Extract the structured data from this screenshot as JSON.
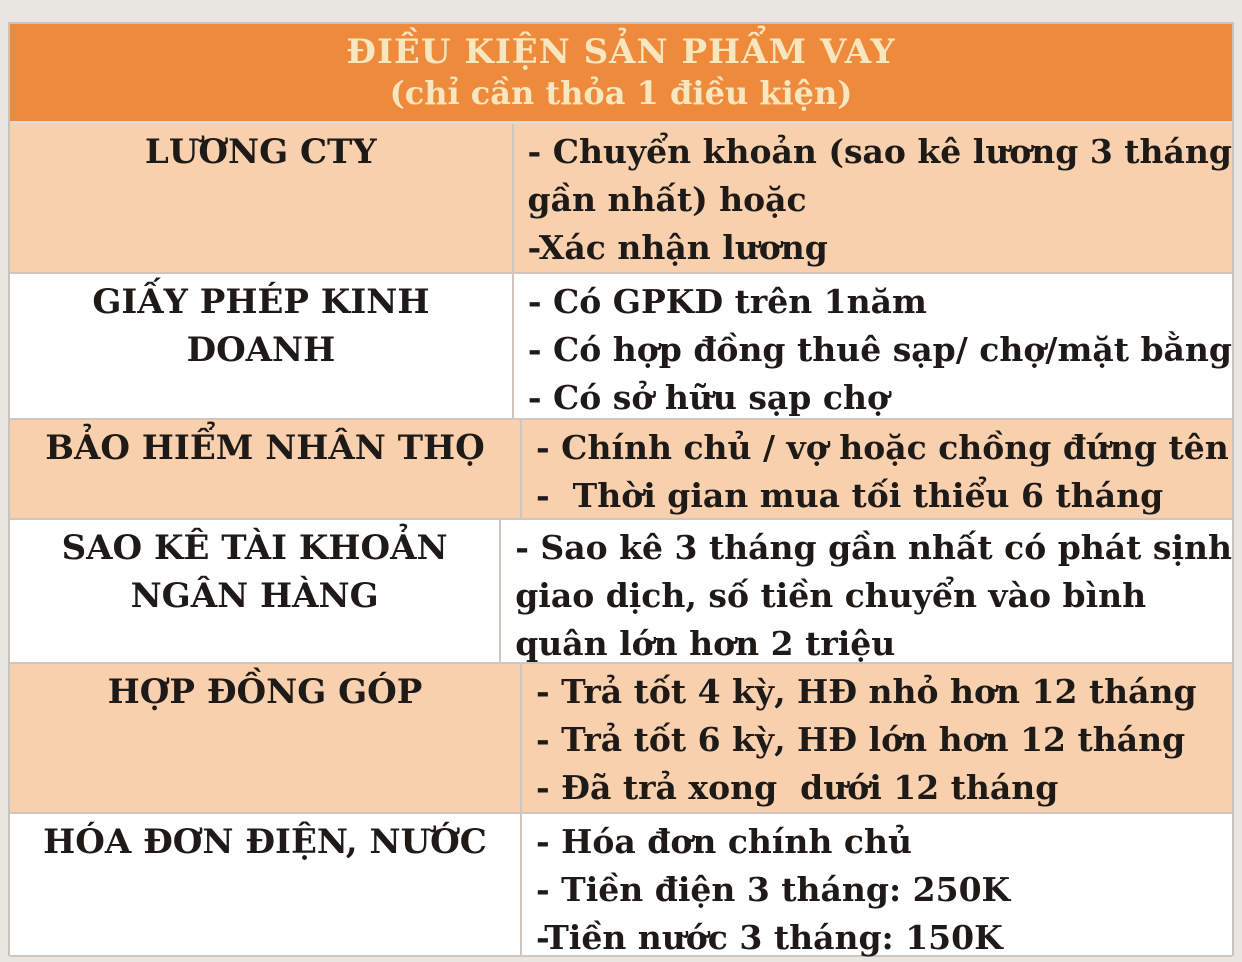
{
  "header": {
    "title": "ĐIỀU KIỆN SẢN PHẨM VAY",
    "subtitle": "(chỉ cần thỏa 1 điều kiện)"
  },
  "colors": {
    "header_bg": "#ee8a3c",
    "header_text": "#f8e6bf",
    "row_alt": "#f8d0ae"
  },
  "rows": [
    {
      "label": [
        "LƯƠNG CTY"
      ],
      "details": [
        "- Chuyển khoản (sao kê lương 3 tháng",
        "gần nhất) hoặc",
        "-Xác nhận lương"
      ]
    },
    {
      "label": [
        "GIẤY PHÉP KINH",
        "DOANH"
      ],
      "details": [
        "- Có GPKD trên 1năm",
        "- Có hợp đồng thuê sạp/ chợ/mặt bằng",
        "- Có sở hữu sạp chợ"
      ]
    },
    {
      "label": [
        "BẢO HIỂM NHÂN THỌ"
      ],
      "details": [
        "- Chính chủ / vợ hoặc chồng đứng tên",
        "-  Thời gian mua tối thiểu 6 tháng"
      ]
    },
    {
      "label": [
        "SAO KÊ TÀI KHOẢN",
        "NGÂN HÀNG"
      ],
      "details": [
        "- Sao kê 3 tháng gần nhất có phát sịnh",
        "giao dịch, số tiền chuyển vào bình",
        "quân lớn hơn 2 triệu"
      ]
    },
    {
      "label": [
        "HỢP ĐỒNG GÓP"
      ],
      "details": [
        "- Trả tốt 4 kỳ, HĐ nhỏ hơn 12 tháng",
        "- Trả tốt 6 kỳ, HĐ lớn hơn 12 tháng",
        "- Đã trả xong  dưới 12 tháng"
      ]
    },
    {
      "label": [
        "HÓA ĐƠN ĐIỆN, NƯỚC"
      ],
      "details": [
        "- Hóa đơn chính chủ",
        "- Tiền điện 3 tháng: 250K",
        "-Tiền nước 3 tháng: 150K"
      ]
    }
  ]
}
